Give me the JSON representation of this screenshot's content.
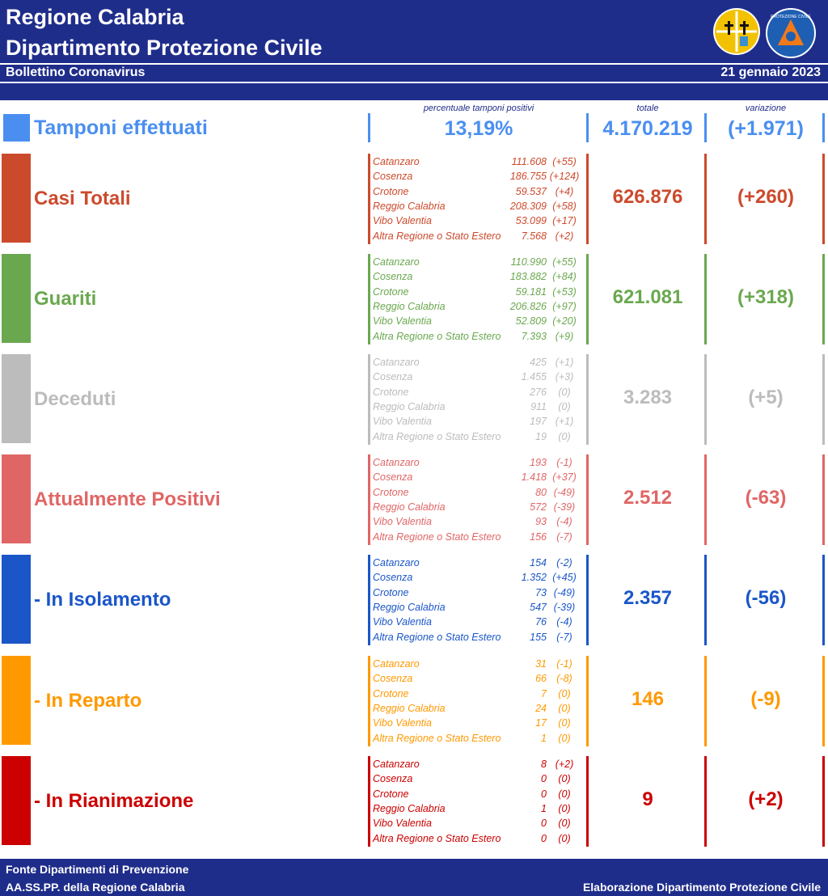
{
  "header": {
    "title_line1": "Regione Calabria",
    "title_line2": "Dipartimento Protezione Civile",
    "subtitle": "Bollettino Coronavirus",
    "date": "21 gennaio 2023"
  },
  "columns": {
    "percent_title": "percentuale tamponi positivi",
    "total_title": "totale",
    "variation_title": "variazione"
  },
  "tamponi": {
    "label": "Tamponi effettuati",
    "percent": "13,19%",
    "total": "4.170.219",
    "variation": "(+1.971)",
    "color": "#4a8ff0"
  },
  "sections": [
    {
      "label": "Casi Totali",
      "color": "#cc4a2c",
      "total": "626.876",
      "variation": "(+260)",
      "rows": [
        {
          "name": "Catanzaro",
          "value": "111.608",
          "delta": "(+55)"
        },
        {
          "name": "Cosenza",
          "value": "186.755",
          "delta": "(+124)"
        },
        {
          "name": "Crotone",
          "value": "59.537",
          "delta": "(+4)"
        },
        {
          "name": "Reggio Calabria",
          "value": "208.309",
          "delta": "(+58)"
        },
        {
          "name": "Vibo Valentia",
          "value": "53.099",
          "delta": "(+17)"
        },
        {
          "name": "Altra Regione o Stato Estero",
          "value": "7.568",
          "delta": "(+2)"
        }
      ]
    },
    {
      "label": "Guariti",
      "color": "#6aa84f",
      "total": "621.081",
      "variation": "(+318)",
      "rows": [
        {
          "name": "Catanzaro",
          "value": "110.990",
          "delta": "(+55)"
        },
        {
          "name": "Cosenza",
          "value": "183.882",
          "delta": "(+84)"
        },
        {
          "name": "Crotone",
          "value": "59.181",
          "delta": "(+53)"
        },
        {
          "name": "Reggio Calabria",
          "value": "206.826",
          "delta": "(+97)"
        },
        {
          "name": "Vibo Valentia",
          "value": "52.809",
          "delta": "(+20)"
        },
        {
          "name": "Altra Regione o Stato Estero",
          "value": "7.393",
          "delta": "(+9)"
        }
      ]
    },
    {
      "label": "Deceduti",
      "color": "#bcbcbc",
      "total": "3.283",
      "variation": "(+5)",
      "rows": [
        {
          "name": "Catanzaro",
          "value": "425",
          "delta": "(+1)"
        },
        {
          "name": "Cosenza",
          "value": "1.455",
          "delta": "(+3)"
        },
        {
          "name": "Crotone",
          "value": "276",
          "delta": "(0)"
        },
        {
          "name": "Reggio Calabria",
          "value": "911",
          "delta": "(0)"
        },
        {
          "name": "Vibo Valentia",
          "value": "197",
          "delta": "(+1)"
        },
        {
          "name": "Altra Regione o Stato Estero",
          "value": "19",
          "delta": "(0)"
        }
      ]
    },
    {
      "label": "Attualmente Positivi",
      "color": "#e06666",
      "total": "2.512",
      "variation": "(-63)",
      "rows": [
        {
          "name": "Catanzaro",
          "value": "193",
          "delta": "(-1)"
        },
        {
          "name": "Cosenza",
          "value": "1.418",
          "delta": "(+37)"
        },
        {
          "name": "Crotone",
          "value": "80",
          "delta": "(-49)"
        },
        {
          "name": "Reggio Calabria",
          "value": "572",
          "delta": "(-39)"
        },
        {
          "name": "Vibo Valentia",
          "value": "93",
          "delta": "(-4)"
        },
        {
          "name": "Altra Regione o Stato Estero",
          "value": "156",
          "delta": "(-7)"
        }
      ]
    },
    {
      "label": "- In Isolamento",
      "color": "#1a56c8",
      "total": "2.357",
      "variation": "(-56)",
      "rows": [
        {
          "name": "Catanzaro",
          "value": "154",
          "delta": "(-2)"
        },
        {
          "name": "Cosenza",
          "value": "1.352",
          "delta": "(+45)"
        },
        {
          "name": "Crotone",
          "value": "73",
          "delta": "(-49)"
        },
        {
          "name": "Reggio Calabria",
          "value": "547",
          "delta": "(-39)"
        },
        {
          "name": "Vibo Valentia",
          "value": "76",
          "delta": "(-4)"
        },
        {
          "name": "Altra Regione o Stato Estero",
          "value": "155",
          "delta": "(-7)"
        }
      ]
    },
    {
      "label": "- In Reparto",
      "color": "#ff9900",
      "total": "146",
      "variation": "(-9)",
      "rows": [
        {
          "name": "Catanzaro",
          "value": "31",
          "delta": "(-1)"
        },
        {
          "name": "Cosenza",
          "value": "66",
          "delta": "(-8)"
        },
        {
          "name": "Crotone",
          "value": "7",
          "delta": "(0)"
        },
        {
          "name": "Reggio Calabria",
          "value": "24",
          "delta": "(0)"
        },
        {
          "name": "Vibo Valentia",
          "value": "17",
          "delta": "(0)"
        },
        {
          "name": "Altra Regione o Stato Estero",
          "value": "1",
          "delta": "(0)"
        }
      ]
    },
    {
      "label": "- In Rianimazione",
      "color": "#cc0000",
      "total": "9",
      "variation": "(+2)",
      "rows": [
        {
          "name": "Catanzaro",
          "value": "8",
          "delta": "(+2)"
        },
        {
          "name": "Cosenza",
          "value": "0",
          "delta": "(0)"
        },
        {
          "name": "Crotone",
          "value": "0",
          "delta": "(0)"
        },
        {
          "name": "Reggio Calabria",
          "value": "1",
          "delta": "(0)"
        },
        {
          "name": "Vibo Valentia",
          "value": "0",
          "delta": "(0)"
        },
        {
          "name": "Altra Regione o Stato Estero",
          "value": "0",
          "delta": "(0)"
        }
      ]
    }
  ],
  "footer": {
    "source_line1": "Fonte Dipartimenti di Prevenzione",
    "source_line2": "AA.SS.PP.  della Regione Calabria",
    "credit": "Elaborazione Dipartimento Protezione Civile"
  },
  "logos": {
    "region": "calabria-region-logo",
    "civil_protection": "protezione-civile-logo",
    "civil_protection_text": "PROTEZIONE CIVILE"
  },
  "colors": {
    "navy": "#1f2d8a"
  }
}
